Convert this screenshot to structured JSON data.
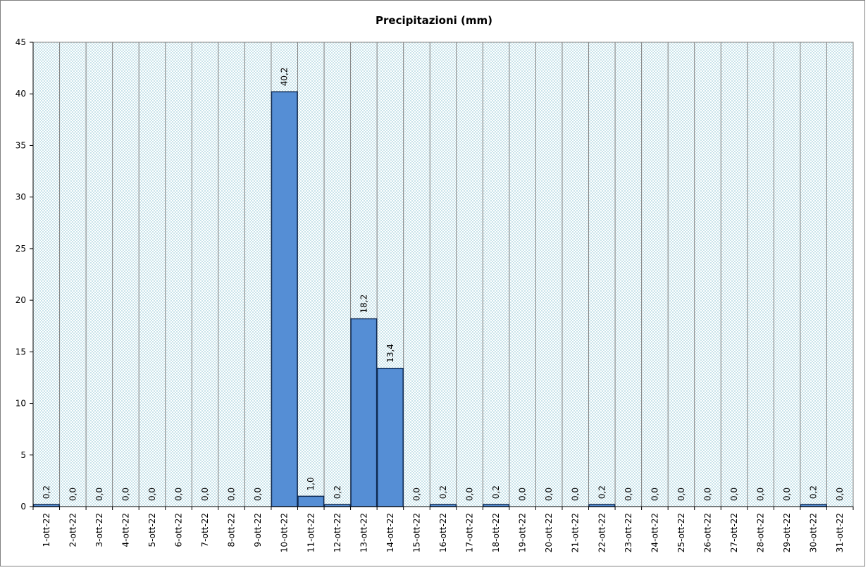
{
  "chart_data": {
    "type": "bar",
    "title": "Precipitazioni  (mm)",
    "xlabel": "",
    "ylabel": "",
    "ylim": [
      0,
      45
    ],
    "yticks": [
      0,
      5,
      10,
      15,
      20,
      25,
      30,
      35,
      40,
      45
    ],
    "grid": "vertical",
    "categories": [
      "1-ott-22",
      "2-ott-22",
      "3-ott-22",
      "4-ott-22",
      "5-ott-22",
      "6-ott-22",
      "7-ott-22",
      "8-ott-22",
      "9-ott-22",
      "10-ott-22",
      "11-ott-22",
      "12-ott-22",
      "13-ott-22",
      "14-ott-22",
      "15-ott-22",
      "16-ott-22",
      "17-ott-22",
      "18-ott-22",
      "19-ott-22",
      "20-ott-22",
      "21-ott-22",
      "22-ott-22",
      "23-ott-22",
      "24-ott-22",
      "25-ott-22",
      "26-ott-22",
      "27-ott-22",
      "28-ott-22",
      "29-ott-22",
      "30-ott-22",
      "31-ott-22"
    ],
    "values": [
      0.2,
      0,
      0,
      0,
      0,
      0,
      0,
      0,
      0,
      40.2,
      1.0,
      0.2,
      18.2,
      13.4,
      0,
      0.2,
      0,
      0.2,
      0,
      0,
      0,
      0.2,
      0,
      0,
      0,
      0,
      0,
      0,
      0,
      0.2,
      0
    ],
    "data_labels": [
      "0,2",
      "0,0",
      "0,0",
      "0,0",
      "0,0",
      "0,0",
      "0,0",
      "0,0",
      "0,0",
      "40,2",
      "1,0",
      "0,2",
      "18,2",
      "13,4",
      "0,0",
      "0,2",
      "0,0",
      "0,2",
      "0,0",
      "0,0",
      "0,0",
      "0,2",
      "0,0",
      "0,0",
      "0,0",
      "0,0",
      "0,0",
      "0,0",
      "0,0",
      "0,2",
      "0,0"
    ],
    "colors": {
      "bar_fill": "#558ED5",
      "bar_stroke": "#0F2A52",
      "plot_bg": "#DAEEF3",
      "grid": "#808080"
    }
  }
}
